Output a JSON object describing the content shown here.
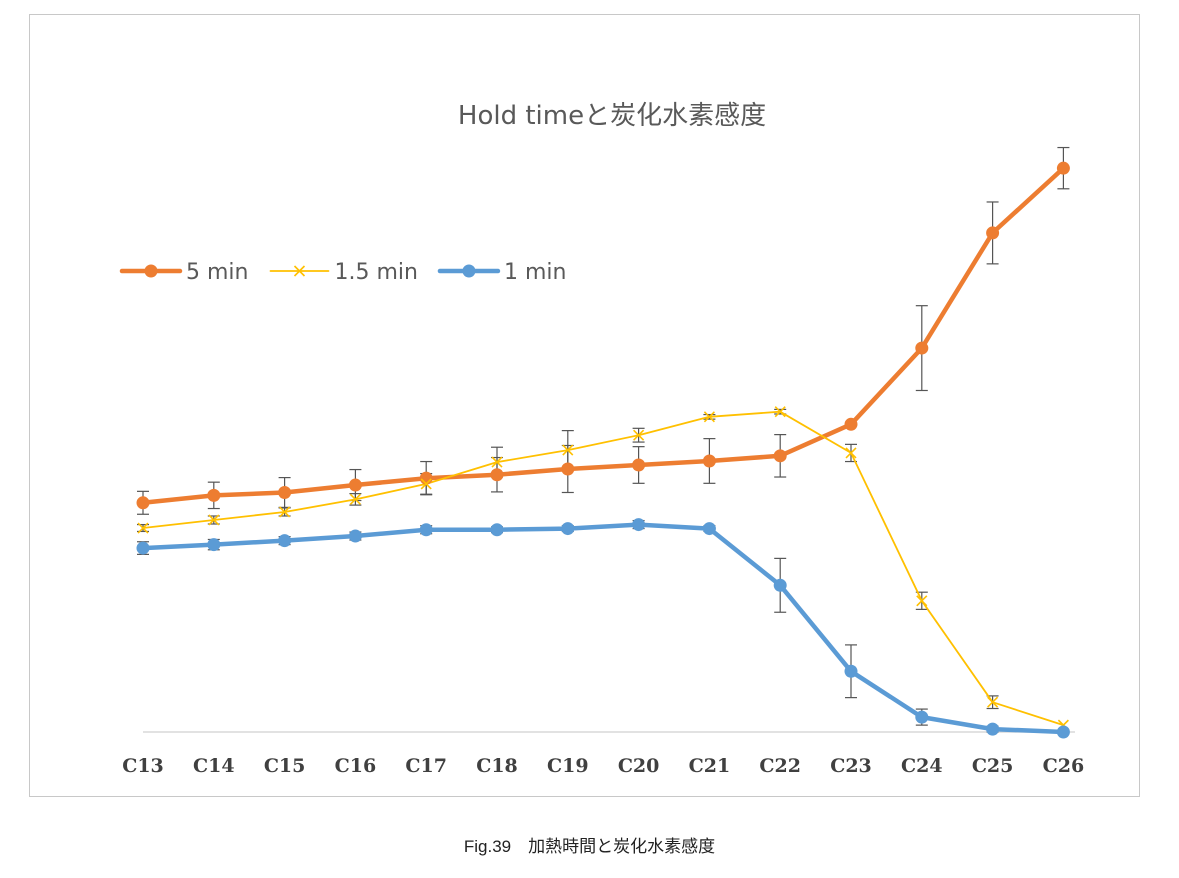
{
  "caption": "Fig.39　加熱時間と炭化水素感度",
  "chart_data": {
    "type": "line",
    "title": "Hold timeと炭化水素感度",
    "xlabel": "",
    "ylabel": "",
    "categories": [
      "C13",
      "C14",
      "C15",
      "C16",
      "C17",
      "C18",
      "C19",
      "C20",
      "C21",
      "C22",
      "C23",
      "C24",
      "C25",
      "C26"
    ],
    "ylim": [
      0,
      100
    ],
    "grid": false,
    "legend": "top-left",
    "error_bars": true,
    "series": [
      {
        "name": "5 min",
        "color": "#ED7D31",
        "marker": "circle",
        "line_width": "thick",
        "values": [
          40.0,
          41.3,
          41.8,
          43.1,
          44.3,
          44.9,
          45.9,
          46.6,
          47.3,
          48.2,
          53.7,
          67.0,
          87.1,
          98.4
        ],
        "errors": [
          2.0,
          2.3,
          2.6,
          2.7,
          2.9,
          3.0,
          4.1,
          3.2,
          3.9,
          3.7,
          0.0,
          7.4,
          5.4,
          3.6
        ]
      },
      {
        "name": "1.5 min",
        "color": "#FFC000",
        "marker": "x",
        "line_width": "thin",
        "values": [
          35.6,
          37.0,
          38.4,
          40.6,
          43.3,
          47.1,
          49.2,
          51.8,
          55.0,
          55.9,
          48.7,
          22.9,
          5.2,
          1.2
        ],
        "errors": [
          0.6,
          0.7,
          0.7,
          1.0,
          1.8,
          2.6,
          3.4,
          1.2,
          0.4,
          0.4,
          1.5,
          1.5,
          1.1,
          0.0
        ]
      },
      {
        "name": "1 min",
        "color": "#5B9BD5",
        "marker": "circle",
        "line_width": "thick",
        "values": [
          32.1,
          32.7,
          33.4,
          34.2,
          35.3,
          35.3,
          35.5,
          36.2,
          35.5,
          25.6,
          10.6,
          2.6,
          0.5,
          0.0
        ],
        "errors": [
          1.1,
          0.9,
          0.7,
          0.7,
          0.7,
          0.5,
          0.5,
          0.7,
          0.5,
          4.7,
          4.6,
          1.4,
          0.5,
          0.3
        ]
      }
    ]
  }
}
